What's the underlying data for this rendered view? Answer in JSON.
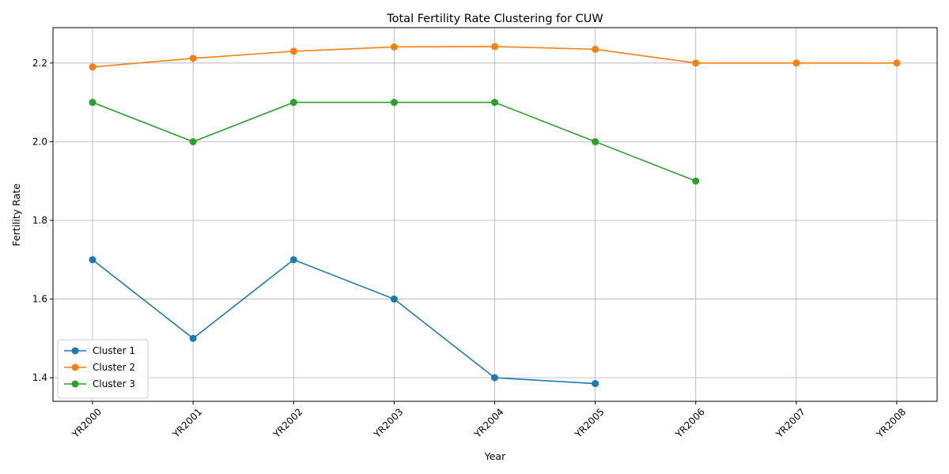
{
  "chart_data": {
    "type": "line",
    "title": "Total Fertility Rate Clustering for CUW",
    "xlabel": "Year",
    "ylabel": "Fertility Rate",
    "categories": [
      "YR2000",
      "YR2001",
      "YR2002",
      "YR2003",
      "YR2004",
      "YR2005",
      "YR2006",
      "YR2007",
      "YR2008"
    ],
    "ylim": [
      1.34,
      2.29
    ],
    "yticks": [
      1.4,
      1.6,
      1.8,
      2.0,
      2.2
    ],
    "ytick_labels": [
      "1.4",
      "1.6",
      "1.8",
      "2.0",
      "2.2"
    ],
    "grid": true,
    "legend_position": "lower-left",
    "series": [
      {
        "name": "Cluster 1",
        "color": "#1f77b4",
        "values": [
          1.7,
          1.5,
          1.7,
          1.6,
          1.4,
          1.385,
          null,
          null,
          null
        ]
      },
      {
        "name": "Cluster 2",
        "color": "#ff7f0e",
        "values": [
          2.19,
          2.212,
          2.23,
          2.241,
          2.242,
          2.235,
          2.2,
          2.2,
          2.2
        ]
      },
      {
        "name": "Cluster 3",
        "color": "#2ca02c",
        "values": [
          2.1,
          2.0,
          2.1,
          2.1,
          2.1,
          2.0,
          1.9,
          null,
          null
        ]
      }
    ]
  }
}
